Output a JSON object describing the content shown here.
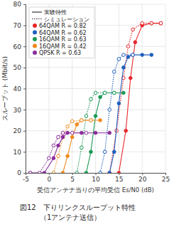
{
  "chart_data": {
    "type": "line",
    "title": [
      "図12　下りリンクスループット特性",
      "（1アンテナ送信）"
    ],
    "x_label": "受信アンテナ当りの平均受信 Es/N0 (dB)",
    "y_label": "スループット (Mbit/s)",
    "xlim": [
      -5,
      25
    ],
    "xticks": [
      -5,
      0,
      5,
      10,
      15,
      20,
      25
    ],
    "ylim": [
      0,
      80
    ],
    "yticks": [
      0,
      10,
      20,
      30,
      40,
      50,
      60,
      70,
      80
    ],
    "grid": true,
    "legend": "top-left",
    "line_legend": [
      {
        "label": "実験特性",
        "line_style": "solid"
      },
      {
        "label": "シミュレーション",
        "line_style": "dotted"
      }
    ],
    "series": [
      {
        "name": "64QAM R = 0.82",
        "color": "#e8262a",
        "experiment": {
          "line_style": "solid",
          "marker": "filled",
          "x": [
            15,
            16.5,
            17.5,
            18.5,
            20,
            22,
            24
          ],
          "values": [
            0,
            20,
            45,
            62,
            70,
            71,
            71
          ]
        },
        "simulation": {
          "line_style": "dotted",
          "marker": "open",
          "x": [
            13,
            14.5,
            16,
            17,
            18,
            20,
            22,
            24
          ],
          "values": [
            0,
            20,
            45,
            60,
            68,
            71,
            71,
            71
          ]
        }
      },
      {
        "name": "64QAM R = 0.62",
        "color": "#1f5fbf",
        "experiment": {
          "line_style": "solid",
          "marker": "filled",
          "x": [
            13,
            14,
            15,
            16,
            17,
            18,
            20,
            22
          ],
          "values": [
            0,
            10,
            33,
            50,
            55,
            56,
            56,
            56
          ]
        },
        "simulation": {
          "line_style": "dotted",
          "marker": "open",
          "x": [
            11,
            12,
            13,
            14,
            15,
            16,
            18
          ],
          "values": [
            0,
            10,
            30,
            48,
            54,
            56,
            56
          ]
        }
      },
      {
        "name": "16QAM R = 0.63",
        "color": "#1a9a55",
        "experiment": {
          "line_style": "solid",
          "marker": "filled",
          "x": [
            8,
            9,
            10,
            11,
            12,
            14,
            16
          ],
          "values": [
            0,
            10,
            27,
            36,
            38,
            38,
            38
          ]
        },
        "simulation": {
          "line_style": "dotted",
          "marker": "open",
          "x": [
            6,
            7,
            8,
            9,
            10,
            12,
            14
          ],
          "values": [
            0,
            12,
            27,
            35,
            38,
            38,
            38
          ]
        }
      },
      {
        "name": "16QAM R = 0.42",
        "color": "#f08a1c",
        "experiment": {
          "line_style": "solid",
          "marker": "filled",
          "x": [
            3,
            4,
            5,
            6,
            7,
            9,
            11
          ],
          "values": [
            0,
            8,
            17,
            23,
            25,
            25,
            25
          ]
        },
        "simulation": {
          "line_style": "dotted",
          "marker": "open",
          "x": [
            1,
            2,
            3,
            4,
            5,
            7,
            9
          ],
          "values": [
            0,
            8,
            17,
            22,
            24.5,
            25,
            25
          ]
        }
      },
      {
        "name": "QPSK R = 0.63",
        "color": "#8a2d9c",
        "experiment": {
          "line_style": "solid",
          "marker": "filled",
          "x": [
            -4,
            -1,
            1,
            2,
            3,
            4,
            7,
            10,
            13
          ],
          "values": [
            0,
            0,
            7,
            13,
            17,
            19,
            19,
            19,
            19
          ]
        },
        "simulation": {
          "line_style": "dotted",
          "marker": "open",
          "x": [
            -4,
            -2,
            0,
            1,
            2,
            3,
            5,
            8
          ],
          "values": [
            0,
            0,
            7,
            13,
            17,
            19,
            19,
            19
          ]
        }
      }
    ]
  }
}
